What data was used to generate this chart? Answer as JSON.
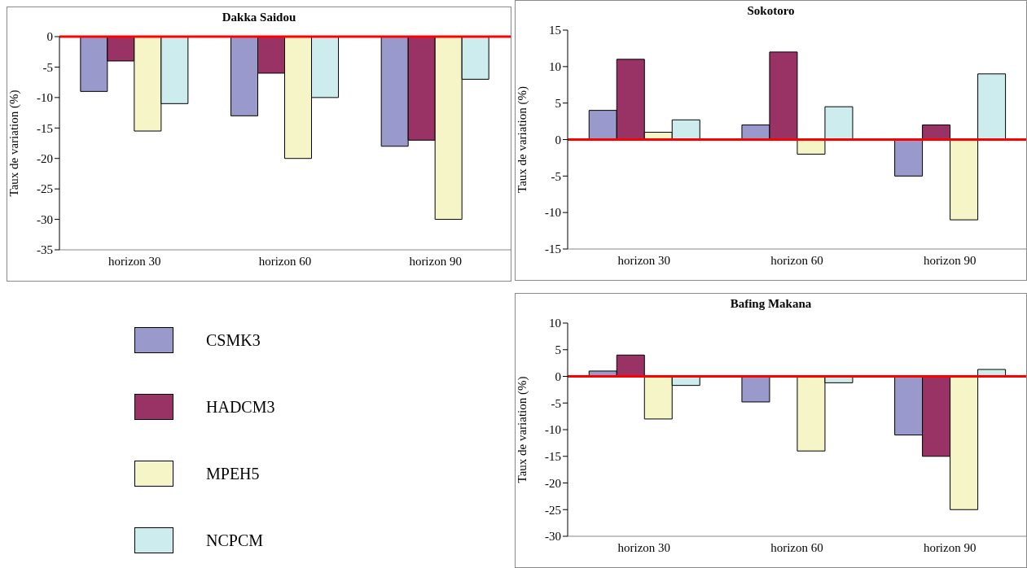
{
  "chart_data": [
    {
      "type": "bar",
      "title": "Dakka Saidou",
      "ylabel": "Taux de variation (%)",
      "categories": [
        "horizon 30",
        "horizon 60",
        "horizon 90"
      ],
      "series": [
        {
          "name": "CSMK3",
          "color": "#9999cc",
          "values": [
            -9,
            -13,
            -18
          ]
        },
        {
          "name": "HADCM3",
          "color": "#993366",
          "values": [
            -4,
            -6,
            -17
          ]
        },
        {
          "name": "MPEH5",
          "color": "#f5f5c8",
          "values": [
            -15.5,
            -20,
            -30
          ]
        },
        {
          "name": "NCPCM",
          "color": "#ccecee",
          "values": [
            -11,
            -10,
            -7
          ]
        }
      ],
      "ylim": [
        -35,
        0
      ],
      "yticks": [
        -35,
        -30,
        -25,
        -20,
        -15,
        -10,
        -5,
        0
      ],
      "grid": false,
      "legend": "bottom left",
      "ref_lines": [
        {
          "axis": "y",
          "value": 0,
          "color": "#ff0000"
        }
      ]
    },
    {
      "type": "bar",
      "title": "Sokotoro",
      "ylabel": "Taux de variation (%)",
      "categories": [
        "horizon 30",
        "horizon 60",
        "horizon 90"
      ],
      "series": [
        {
          "color": "#9999cc",
          "values": [
            4,
            2,
            -5
          ]
        },
        {
          "color": "#993366",
          "values": [
            11,
            12,
            2
          ]
        },
        {
          "color": "#f5f5c8",
          "values": [
            1,
            -2,
            -11
          ]
        },
        {
          "color": "#ccecee",
          "values": [
            2.7,
            4.5,
            9
          ]
        }
      ],
      "ylim": [
        -15,
        15
      ],
      "yticks": [
        -15,
        -10,
        -5,
        0,
        5,
        10,
        15
      ],
      "grid": false,
      "ref_lines": [
        {
          "axis": "y",
          "value": 0,
          "color": "#ff0000"
        }
      ]
    },
    {
      "type": "bar",
      "title": "Bafing Makana",
      "ylabel": "Taux de variation (%)",
      "categories": [
        "horizon 30",
        "horizon 60",
        "horizon 90"
      ],
      "series": [
        {
          "color": "#9999cc",
          "values": [
            1,
            -4.8,
            -11
          ]
        },
        {
          "color": "#993366",
          "values": [
            4,
            0,
            -15
          ]
        },
        {
          "color": "#f5f5c8",
          "values": [
            -8,
            -14,
            -25
          ]
        },
        {
          "color": "#ccecee",
          "values": [
            -1.7,
            -1.2,
            1.3
          ]
        }
      ],
      "ylim": [
        -30,
        10
      ],
      "yticks": [
        -30,
        -25,
        -20,
        -15,
        -10,
        -5,
        0,
        5,
        10
      ],
      "grid": false,
      "ref_lines": [
        {
          "axis": "y",
          "value": 0,
          "color": "#ff0000"
        }
      ]
    }
  ]
}
